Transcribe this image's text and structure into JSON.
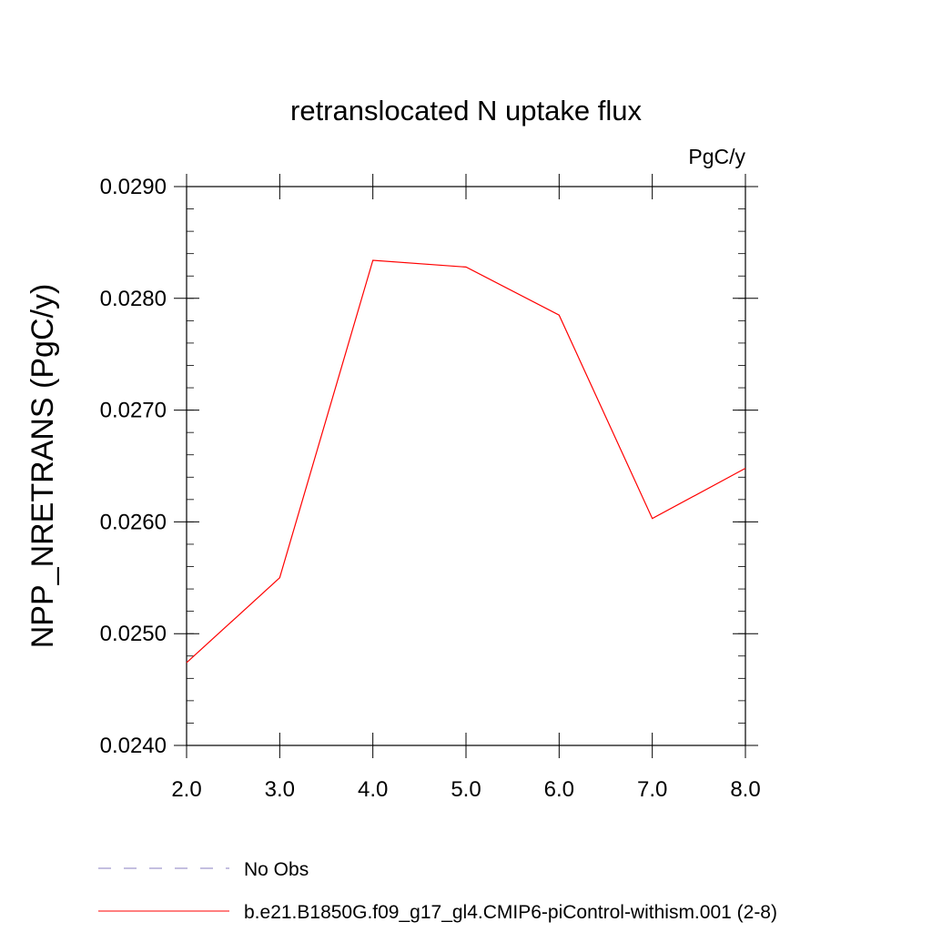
{
  "chart_data": {
    "type": "line",
    "title": "retranslocated N uptake flux",
    "units_label": "PgC/y",
    "ylabel": "NPP_NRETRANS  (PgC/y)",
    "xlabel": "",
    "xlim": [
      2.0,
      8.0
    ],
    "ylim": [
      0.024,
      0.029
    ],
    "x_ticks": [
      2.0,
      3.0,
      4.0,
      5.0,
      6.0,
      7.0,
      8.0
    ],
    "x_tick_labels": [
      "2.0",
      "3.0",
      "4.0",
      "5.0",
      "6.0",
      "7.0",
      "8.0"
    ],
    "y_ticks": [
      0.024,
      0.025,
      0.026,
      0.027,
      0.028,
      0.029
    ],
    "y_tick_labels": [
      "0.0240",
      "0.0250",
      "0.0260",
      "0.0270",
      "0.0280",
      "0.0290"
    ],
    "y_minor_step": 0.0002,
    "grid": false,
    "legend_position": "bottom",
    "series": [
      {
        "name": "b.e21.B1850G.f09_g17_gl4.CMIP6-piControl-withism.001 (2-8)",
        "color": "#ff0000",
        "style": "solid",
        "x": [
          2.0,
          3.0,
          4.0,
          5.0,
          6.0,
          7.0,
          8.0
        ],
        "y": [
          0.02474,
          0.0255,
          0.02834,
          0.02828,
          0.02785,
          0.02603,
          0.02648
        ]
      }
    ],
    "legend": [
      {
        "label": "No Obs",
        "color": "#8a7fc0",
        "style": "dashed"
      },
      {
        "label": "b.e21.B1850G.f09_g17_gl4.CMIP6-piControl-withism.001 (2-8)",
        "color": "#ff0000",
        "style": "solid"
      }
    ]
  }
}
